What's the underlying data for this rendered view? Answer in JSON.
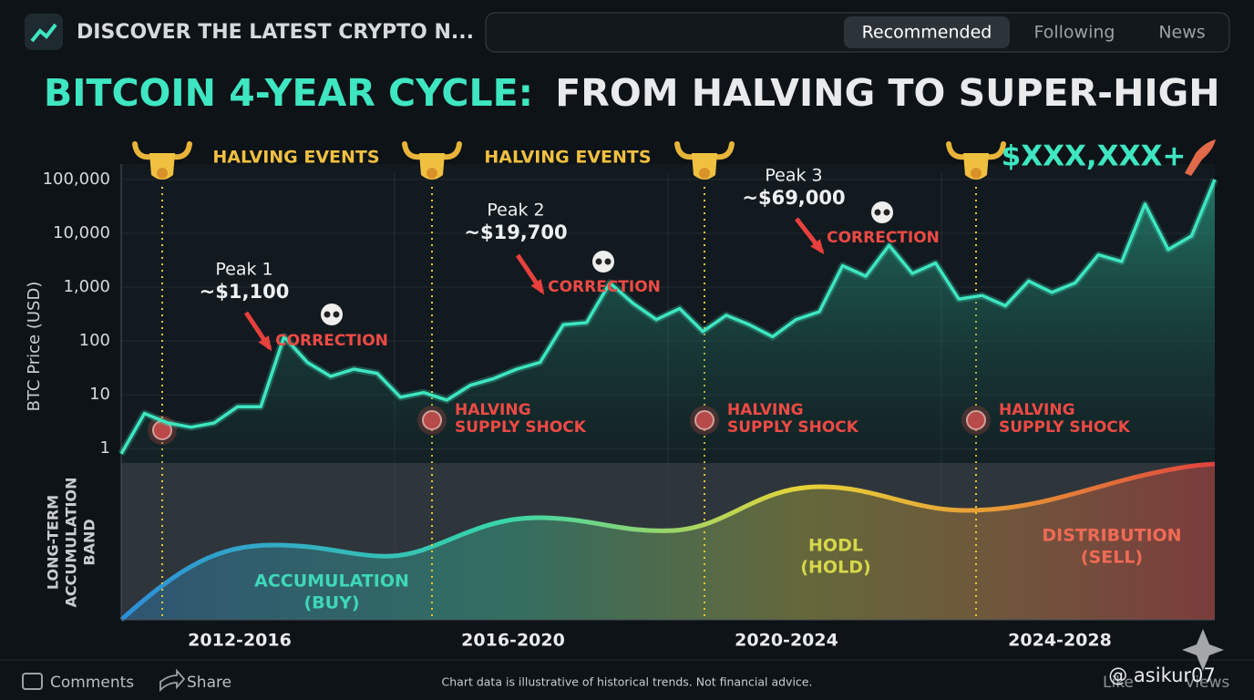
{
  "header": {
    "channel": "DISCOVER THE LATEST CRYPTO N...",
    "tabs": [
      "Recommended",
      "Following",
      "News"
    ]
  },
  "chart_data": {
    "type": "line",
    "title_highlight": "BITCOIN 4-YEAR CYCLE:",
    "title_rest": "FROM HALVING TO SUPER-HIGH",
    "y_label": "BTC Price (USD)",
    "log_scale": true,
    "grid": true,
    "ylim": [
      0.54,
      131000
    ],
    "yticks": [
      1,
      10,
      100,
      {
        "value": 1000,
        "label": "1,000"
      },
      {
        "value": 10000,
        "label": "10,000"
      },
      {
        "value": 100000,
        "label": "100,000"
      }
    ],
    "categories": [
      null,
      null,
      null,
      null,
      null,
      null,
      null,
      null,
      null,
      null,
      null,
      null,
      null,
      null,
      null,
      null,
      null,
      null,
      null,
      null,
      null,
      null,
      null,
      null,
      null,
      null,
      null,
      null,
      null,
      null,
      null,
      null,
      null,
      null,
      null,
      null,
      null,
      null,
      null,
      null,
      null,
      null,
      null,
      null,
      null,
      null,
      null,
      null
    ],
    "series": [
      {
        "name": "BTC Price",
        "color": "#3ee6c1",
        "values": [
          0.8,
          4.5,
          3,
          2.5,
          3,
          6,
          6,
          120,
          40,
          22,
          30,
          25,
          9,
          11,
          8,
          15,
          20,
          30,
          40,
          200,
          220,
          1200,
          500,
          250,
          400,
          150,
          300,
          200,
          120,
          250,
          350,
          2500,
          1600,
          6000,
          1800,
          2800,
          600,
          700,
          450,
          1300,
          800,
          1200,
          4000,
          3000,
          35000,
          5000,
          9000,
          100000
        ]
      }
    ],
    "periods": [
      "2012-2016",
      "2016-2020",
      "2020-2024",
      "2024-2028"
    ],
    "band_label": [
      "LONG-TERM",
      "ACCUMULATION",
      "BAND"
    ],
    "annotations": [
      "HALVING EVENTS",
      "HALVING EVENTS",
      "$XXX,XXX+",
      "Peak 1",
      "~$1,100",
      "CORRECTION",
      "Peak 2",
      "~$19,700",
      "CORRECTION",
      "Peak 3",
      "~$69,000",
      "CORRECTION",
      "HALVING",
      "SUPPLY SHOCK",
      "HALVING",
      "SUPPLY SHOCK",
      "HALVING",
      "SUPPLY SHOCK",
      "ACCUMULATION",
      "(BUY)",
      "HODL",
      "(HOLD)",
      "DISTRIBUTION",
      "(SELL)"
    ]
  },
  "footer": {
    "comments": "Comments",
    "share": "Share",
    "disclaimer": "Chart data is illustrative of historical trends. Not financial advice.",
    "like": "Like",
    "views": "Views",
    "watermark": "@ asikur07"
  }
}
